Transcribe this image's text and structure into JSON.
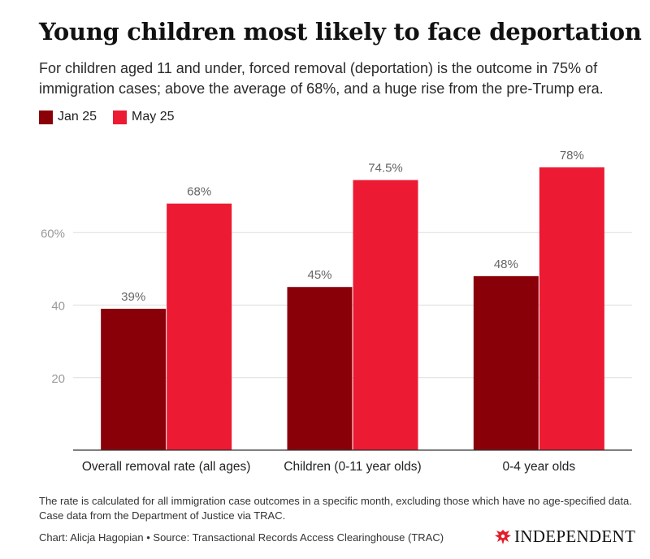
{
  "title": "Young children most likely to face deportation",
  "subtitle": "For children aged 11 and under, forced removal (deportation) is the outcome in 75% of immigration cases; above the average of 68%, and a huge rise from the pre-Trump era.",
  "footnote": "The rate is calculated for all immigration case outcomes in a specific month, excluding those which have no age-specified data. Case data from the Department of Justice via TRAC.",
  "credit": "Chart: Alicja Hagopian • Source: Transactional Records Access Clearinghouse (TRAC)",
  "brand": {
    "name": "INDEPENDENT",
    "icon": "eagle-icon"
  },
  "colors": {
    "jan": "#8a0009",
    "may": "#ec1a33",
    "grid": "#dddddd",
    "tick_text": "#999999"
  },
  "chart_data": {
    "type": "bar",
    "categories": [
      "Overall removal rate (all ages)",
      "Children (0-11 year olds)",
      "0-4 year olds"
    ],
    "series": [
      {
        "name": "Jan 25",
        "values": [
          39,
          45,
          48
        ],
        "labels": [
          "39%",
          "45%",
          "48%"
        ]
      },
      {
        "name": "May 25",
        "values": [
          68,
          74.5,
          78
        ],
        "labels": [
          "68%",
          "74.5%",
          "78%"
        ]
      }
    ],
    "yticks": [
      20,
      40,
      60
    ],
    "ytick_labels": [
      "20",
      "40",
      "60%"
    ],
    "ylim": [
      0,
      78
    ],
    "grid": true,
    "legend_position": "top-left"
  }
}
